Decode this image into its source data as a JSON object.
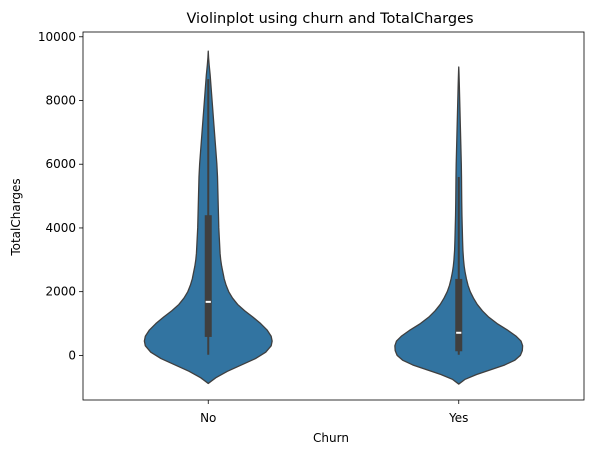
{
  "chart_data": {
    "type": "violin",
    "title": "Violinplot using churn and TotalCharges",
    "xlabel": "Churn",
    "ylabel": "TotalCharges",
    "categories": [
      "No",
      "Yes"
    ],
    "ylim": [
      -1400,
      10150
    ],
    "yticks": [
      0,
      2000,
      4000,
      6000,
      8000,
      10000
    ],
    "grid": false,
    "color": "#3274a1",
    "edge_color": "#3f3f3f",
    "violins": [
      {
        "category": "No",
        "min": 19,
        "q1": 580,
        "median": 1680,
        "q3": 4400,
        "max": 8670,
        "whisker_low": 19,
        "whisker_high": 8670,
        "density": [
          [
            -880,
            0.0
          ],
          [
            -700,
            0.12
          ],
          [
            -500,
            0.3
          ],
          [
            -300,
            0.52
          ],
          [
            -100,
            0.74
          ],
          [
            100,
            0.9
          ],
          [
            300,
            0.985
          ],
          [
            450,
            1.0
          ],
          [
            600,
            0.985
          ],
          [
            800,
            0.92
          ],
          [
            1000,
            0.82
          ],
          [
            1200,
            0.7
          ],
          [
            1400,
            0.57
          ],
          [
            1600,
            0.46
          ],
          [
            1800,
            0.38
          ],
          [
            2000,
            0.32
          ],
          [
            2200,
            0.28
          ],
          [
            2400,
            0.25
          ],
          [
            2600,
            0.23
          ],
          [
            2800,
            0.21
          ],
          [
            3000,
            0.195
          ],
          [
            3200,
            0.185
          ],
          [
            3400,
            0.18
          ],
          [
            3600,
            0.175
          ],
          [
            3800,
            0.17
          ],
          [
            4000,
            0.165
          ],
          [
            4400,
            0.16
          ],
          [
            4800,
            0.155
          ],
          [
            5200,
            0.15
          ],
          [
            5600,
            0.145
          ],
          [
            6000,
            0.135
          ],
          [
            6400,
            0.12
          ],
          [
            6800,
            0.105
          ],
          [
            7200,
            0.09
          ],
          [
            7600,
            0.075
          ],
          [
            8000,
            0.06
          ],
          [
            8400,
            0.045
          ],
          [
            8800,
            0.03
          ],
          [
            9100,
            0.015
          ],
          [
            9350,
            0.005
          ],
          [
            9550,
            0.0
          ]
        ]
      },
      {
        "category": "Yes",
        "min": 19,
        "q1": 130,
        "median": 710,
        "q3": 2400,
        "max": 5600,
        "whisker_low": 19,
        "whisker_high": 5600,
        "density": [
          [
            -900,
            0.0
          ],
          [
            -750,
            0.1
          ],
          [
            -600,
            0.28
          ],
          [
            -450,
            0.5
          ],
          [
            -300,
            0.72
          ],
          [
            -150,
            0.88
          ],
          [
            0,
            0.965
          ],
          [
            150,
            0.995
          ],
          [
            300,
            1.0
          ],
          [
            450,
            0.975
          ],
          [
            600,
            0.9
          ],
          [
            800,
            0.76
          ],
          [
            1000,
            0.6
          ],
          [
            1200,
            0.47
          ],
          [
            1400,
            0.37
          ],
          [
            1600,
            0.29
          ],
          [
            1800,
            0.23
          ],
          [
            2000,
            0.18
          ],
          [
            2200,
            0.145
          ],
          [
            2400,
            0.12
          ],
          [
            2600,
            0.1
          ],
          [
            2800,
            0.085
          ],
          [
            3000,
            0.075
          ],
          [
            3300,
            0.065
          ],
          [
            3600,
            0.06
          ],
          [
            4000,
            0.055
          ],
          [
            4400,
            0.05
          ],
          [
            4800,
            0.047
          ],
          [
            5200,
            0.045
          ],
          [
            5600,
            0.043
          ],
          [
            6000,
            0.04
          ],
          [
            6400,
            0.035
          ],
          [
            6800,
            0.03
          ],
          [
            7200,
            0.025
          ],
          [
            7600,
            0.02
          ],
          [
            8000,
            0.015
          ],
          [
            8400,
            0.01
          ],
          [
            8700,
            0.006
          ],
          [
            8900,
            0.003
          ],
          [
            9050,
            0.0
          ]
        ]
      }
    ]
  }
}
